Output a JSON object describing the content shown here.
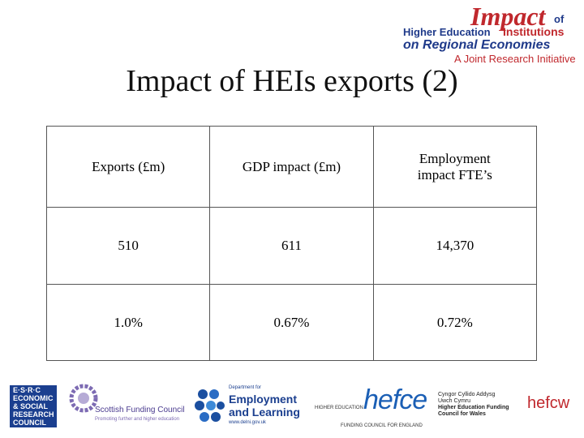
{
  "logo": {
    "word": "Impact",
    "of": "of",
    "line1": "Higher Education",
    "line1b": "Institutions",
    "line2": "on Regional Economies",
    "tagline": "A Joint Research Initiative"
  },
  "title": "Impact of HEIs exports (2)",
  "table": {
    "header": [
      "Exports (£m)",
      "GDP impact (£m)",
      "Employment impact FTE’s"
    ],
    "rows": [
      [
        "510",
        "611",
        "14,370"
      ],
      [
        "1.0%",
        "0.67%",
        "0.72%"
      ]
    ]
  },
  "footer": {
    "esrc": [
      "E·S·R·C",
      "ECONOMIC",
      "& SOCIAL",
      "RESEARCH",
      "COUNCIL"
    ],
    "sfc": {
      "name": "Scottish Funding Council",
      "tagline": "Promoting further and higher education"
    },
    "del": {
      "dept": "Department for",
      "name1": "Employment",
      "name2": "and Learning",
      "url": "www.delni.gov.uk"
    },
    "hefce": {
      "name": "hefce",
      "left": "HIGHER EDUCATION",
      "bottom": "FUNDING COUNCIL FOR ENGLAND"
    },
    "hefcw": {
      "welsh1": "Cyngor Cyllido Addysg",
      "welsh2": "Uwch Cymru",
      "en1": "Higher Education Funding",
      "en2": "Council for Wales",
      "name": "hefcw"
    }
  }
}
